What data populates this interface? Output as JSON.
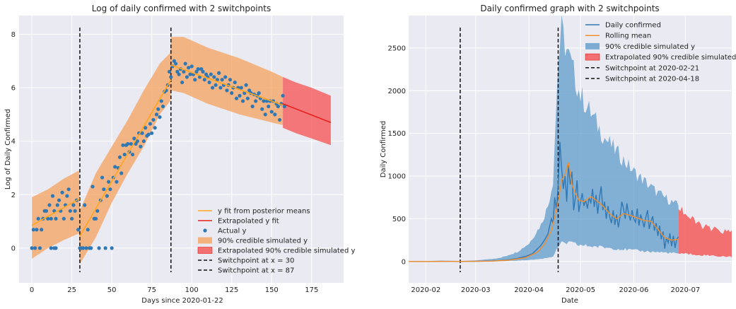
{
  "chart_data": [
    {
      "type": "line",
      "title": "Log of daily confirmed with 2 switchpoints",
      "xlabel": "Days since 2020-01-22",
      "ylabel": "Log of Daily Confirmed",
      "xlim": [
        -8,
        195
      ],
      "ylim": [
        -1.3,
        8.7
      ],
      "xticks": [
        0,
        25,
        50,
        75,
        100,
        125,
        150,
        175
      ],
      "yticks": [
        0,
        2,
        4,
        6,
        8
      ],
      "grid": true,
      "legend_position": "lower-right",
      "legend": [
        "y fit from posterior means",
        "Extrapolated y fit",
        "Actual y",
        "90% credible simulated y",
        "Extrapolated 90% credible simulated y",
        "Switchpoint at x = 30",
        "Switchpoint at x = 87"
      ],
      "switchpoints": [
        30,
        87
      ],
      "fit": [
        [
          0,
          0.85
        ],
        [
          30,
          1.85
        ],
        [
          30,
          0.45
        ],
        [
          87,
          6.3
        ],
        [
          87,
          6.85
        ],
        [
          157,
          5.35
        ]
      ],
      "extrapolated_fit": [
        [
          157,
          5.4
        ],
        [
          187,
          4.7
        ]
      ],
      "band": {
        "x": [
          0,
          10,
          20,
          29.5,
          30,
          40,
          50,
          60,
          70,
          80,
          86.5,
          87,
          95,
          110,
          130,
          150,
          157
        ],
        "lower": [
          -0.4,
          0.0,
          0.3,
          0.55,
          -0.6,
          0.4,
          1.7,
          2.8,
          3.8,
          5.0,
          5.5,
          5.9,
          5.8,
          5.4,
          5.0,
          4.7,
          4.6
        ],
        "upper": [
          1.9,
          2.2,
          2.6,
          2.9,
          1.4,
          2.8,
          3.8,
          4.8,
          5.9,
          6.9,
          7.3,
          7.9,
          7.9,
          7.5,
          7.1,
          6.6,
          6.4
        ]
      },
      "extrapolated_band": {
        "x": [
          157,
          165,
          175,
          187
        ],
        "lower": [
          4.5,
          4.3,
          4.1,
          3.85
        ],
        "upper": [
          6.4,
          6.2,
          6.0,
          5.7
        ]
      },
      "points": [
        [
          0,
          0
        ],
        [
          2,
          0
        ],
        [
          5,
          0
        ],
        [
          12,
          0
        ],
        [
          14,
          0
        ],
        [
          15,
          0
        ],
        [
          1,
          0.69
        ],
        [
          3,
          0.69
        ],
        [
          6,
          0.69
        ],
        [
          4,
          1.1
        ],
        [
          7,
          1.1
        ],
        [
          8,
          1.39
        ],
        [
          9,
          1.39
        ],
        [
          10,
          1.1
        ],
        [
          11,
          1.61
        ],
        [
          12,
          1.1
        ],
        [
          13,
          1.95
        ],
        [
          14,
          1.39
        ],
        [
          15,
          1.1
        ],
        [
          16,
          1.61
        ],
        [
          17,
          1.79
        ],
        [
          18,
          1.39
        ],
        [
          19,
          2.08
        ],
        [
          20,
          1.1
        ],
        [
          21,
          1.61
        ],
        [
          22,
          1.95
        ],
        [
          23,
          2.2
        ],
        [
          24,
          1.39
        ],
        [
          25,
          1.1
        ],
        [
          26,
          1.61
        ],
        [
          27,
          1.39
        ],
        [
          28,
          1.79
        ],
        [
          29,
          0.69
        ],
        [
          30,
          0
        ],
        [
          31,
          0
        ],
        [
          32,
          0
        ],
        [
          33,
          1.61
        ],
        [
          34,
          0
        ],
        [
          35,
          0.69
        ],
        [
          36,
          0
        ],
        [
          37,
          0
        ],
        [
          38,
          2.3
        ],
        [
          39,
          1.1
        ],
        [
          40,
          1.1
        ],
        [
          42,
          0
        ],
        [
          44,
          2.64
        ],
        [
          46,
          0
        ],
        [
          48,
          2.48
        ],
        [
          50,
          0
        ],
        [
          41,
          1.39
        ],
        [
          43,
          1.79
        ],
        [
          45,
          2.2
        ],
        [
          47,
          1.95
        ],
        [
          49,
          2.2
        ],
        [
          51,
          2.64
        ],
        [
          52,
          3.04
        ],
        [
          53,
          2.48
        ],
        [
          54,
          3.0
        ],
        [
          55,
          3.4
        ],
        [
          56,
          2.8
        ],
        [
          57,
          3.85
        ],
        [
          58,
          3.5
        ],
        [
          59,
          3.85
        ],
        [
          60,
          3.9
        ],
        [
          61,
          3.6
        ],
        [
          62,
          3.9
        ],
        [
          63,
          3.5
        ],
        [
          64,
          4.1
        ],
        [
          65,
          3.9
        ],
        [
          66,
          4.0
        ],
        [
          67,
          4.3
        ],
        [
          68,
          3.8
        ],
        [
          69,
          4.3
        ],
        [
          70,
          4.0
        ],
        [
          71,
          4.5
        ],
        [
          72,
          4.2
        ],
        [
          73,
          4.25
        ],
        [
          74,
          4.65
        ],
        [
          75,
          4.3
        ],
        [
          76,
          4.8
        ],
        [
          77,
          4.5
        ],
        [
          78,
          5.0
        ],
        [
          79,
          5.2
        ],
        [
          80,
          4.9
        ],
        [
          81,
          5.5
        ],
        [
          82,
          5.3
        ],
        [
          83,
          5.85
        ],
        [
          84,
          5.9
        ],
        [
          85,
          6.1
        ],
        [
          86,
          6.6
        ],
        [
          87,
          6.4
        ],
        [
          88,
          6.8
        ],
        [
          89,
          7.0
        ],
        [
          90,
          6.9
        ],
        [
          91,
          6.6
        ],
        [
          92,
          6.5
        ],
        [
          93,
          6.7
        ],
        [
          94,
          6.2
        ],
        [
          95,
          6.6
        ],
        [
          96,
          6.9
        ],
        [
          97,
          6.4
        ],
        [
          98,
          6.75
        ],
        [
          99,
          6.5
        ],
        [
          100,
          6.8
        ],
        [
          101,
          6.5
        ],
        [
          102,
          6.3
        ],
        [
          103,
          6.6
        ],
        [
          104,
          6.7
        ],
        [
          105,
          6.4
        ],
        [
          106,
          6.7
        ],
        [
          107,
          6.6
        ],
        [
          108,
          6.3
        ],
        [
          109,
          6.5
        ],
        [
          110,
          6.4
        ],
        [
          111,
          6.2
        ],
        [
          112,
          6.5
        ],
        [
          113,
          6.0
        ],
        [
          114,
          6.4
        ],
        [
          115,
          6.1
        ],
        [
          116,
          6.3
        ],
        [
          117,
          6.55
        ],
        [
          118,
          6.0
        ],
        [
          119,
          6.3
        ],
        [
          120,
          6.1
        ],
        [
          121,
          6.4
        ],
        [
          122,
          5.9
        ],
        [
          123,
          6.1
        ],
        [
          124,
          6.3
        ],
        [
          125,
          5.8
        ],
        [
          126,
          6.0
        ],
        [
          127,
          6.2
        ],
        [
          128,
          5.6
        ],
        [
          129,
          6.0
        ],
        [
          130,
          5.7
        ],
        [
          131,
          6.0
        ],
        [
          132,
          5.5
        ],
        [
          133,
          5.8
        ],
        [
          134,
          6.1
        ],
        [
          135,
          5.6
        ],
        [
          136,
          5.9
        ],
        [
          137,
          5.8
        ],
        [
          138,
          5.3
        ],
        [
          139,
          5.75
        ],
        [
          140,
          5.5
        ],
        [
          141,
          5.7
        ],
        [
          142,
          5.8
        ],
        [
          143,
          5.6
        ],
        [
          144,
          5.2
        ],
        [
          145,
          5.5
        ],
        [
          146,
          5.0
        ],
        [
          147,
          5.5
        ],
        [
          148,
          5.3
        ],
        [
          149,
          5.5
        ],
        [
          150,
          5.1
        ],
        [
          151,
          5.5
        ],
        [
          152,
          5.0
        ],
        [
          153,
          5.4
        ],
        [
          154,
          5.3
        ],
        [
          155,
          4.8
        ],
        [
          156,
          5.4
        ],
        [
          157,
          5.7
        ],
        [
          158,
          5.3
        ]
      ]
    },
    {
      "type": "line",
      "title": "Daily confirmed graph with 2 switchpoints",
      "xlabel": "Date",
      "ylabel": "Daily Confirmed",
      "xlim": [
        "2020-01-22",
        "2020-07-28"
      ],
      "ylim": [
        -250,
        2880
      ],
      "xticks": [
        "2020-02",
        "2020-03",
        "2020-04",
        "2020-05",
        "2020-06",
        "2020-07"
      ],
      "yticks": [
        0,
        500,
        1000,
        1500,
        2000,
        2500
      ],
      "grid": true,
      "legend_position": "top-right",
      "legend": [
        "Daily confirmed",
        "Rolling mean",
        "90% credible simulated y",
        "Extrapolated 90% credible simulated y",
        "Switchpoint at 2020-02-21",
        "Switchpoint at 2020-04-18"
      ],
      "switchpoints": [
        "2020-02-21",
        "2020-04-18"
      ],
      "band": {
        "x": [
          "2020-01-22",
          "2020-02-21",
          "2020-03-01",
          "2020-03-15",
          "2020-03-25",
          "2020-04-01",
          "2020-04-08",
          "2020-04-12",
          "2020-04-15",
          "2020-04-18",
          "2020-04-20",
          "2020-04-24",
          "2020-05-01",
          "2020-05-15",
          "2020-06-01",
          "2020-06-15",
          "2020-06-27"
        ],
        "lower": [
          0,
          0,
          0,
          3,
          10,
          18,
          30,
          45,
          60,
          170,
          210,
          220,
          190,
          165,
          130,
          110,
          95
        ],
        "upper": [
          2,
          5,
          12,
          40,
          110,
          210,
          430,
          650,
          950,
          2350,
          2700,
          2400,
          1950,
          1450,
          1050,
          800,
          650
        ]
      },
      "extrapolated_band": {
        "x": [
          "2020-06-27",
          "2020-07-05",
          "2020-07-15",
          "2020-07-28"
        ],
        "lower": [
          95,
          85,
          70,
          55
        ],
        "upper": [
          650,
          480,
          380,
          340
        ]
      },
      "daily": [
        [
          "2020-01-22",
          0
        ],
        [
          "2020-02-01",
          0
        ],
        [
          "2020-02-10",
          3
        ],
        [
          "2020-02-21",
          1
        ],
        [
          "2020-03-01",
          2
        ],
        [
          "2020-03-10",
          5
        ],
        [
          "2020-03-15",
          12
        ],
        [
          "2020-03-20",
          20
        ],
        [
          "2020-03-25",
          35
        ],
        [
          "2020-03-30",
          60
        ],
        [
          "2020-04-03",
          90
        ],
        [
          "2020-04-06",
          150
        ],
        [
          "2020-04-08",
          190
        ],
        [
          "2020-04-10",
          250
        ],
        [
          "2020-04-12",
          320
        ],
        [
          "2020-04-14",
          500
        ],
        [
          "2020-04-15",
          450
        ],
        [
          "2020-04-16",
          750
        ],
        [
          "2020-04-17",
          600
        ],
        [
          "2020-04-18",
          900
        ],
        [
          "2020-04-19",
          1400
        ],
        [
          "2020-04-20",
          1100
        ],
        [
          "2020-04-21",
          850
        ],
        [
          "2020-04-22",
          1000
        ],
        [
          "2020-04-23",
          700
        ],
        [
          "2020-04-24",
          1150
        ],
        [
          "2020-04-25",
          900
        ],
        [
          "2020-04-26",
          1050
        ],
        [
          "2020-04-27",
          600
        ],
        [
          "2020-04-28",
          750
        ],
        [
          "2020-04-29",
          950
        ],
        [
          "2020-04-30",
          580
        ],
        [
          "2020-05-01",
          700
        ],
        [
          "2020-05-02",
          800
        ],
        [
          "2020-05-03",
          650
        ],
        [
          "2020-05-04",
          720
        ],
        [
          "2020-05-05",
          620
        ],
        [
          "2020-05-06",
          750
        ],
        [
          "2020-05-07",
          680
        ],
        [
          "2020-05-08",
          850
        ],
        [
          "2020-05-09",
          640
        ],
        [
          "2020-05-10",
          780
        ],
        [
          "2020-05-11",
          560
        ],
        [
          "2020-05-12",
          740
        ],
        [
          "2020-05-13",
          880
        ],
        [
          "2020-05-14",
          600
        ],
        [
          "2020-05-15",
          700
        ],
        [
          "2020-05-16",
          500
        ],
        [
          "2020-05-17",
          650
        ],
        [
          "2020-05-18",
          520
        ],
        [
          "2020-05-19",
          450
        ],
        [
          "2020-05-20",
          600
        ],
        [
          "2020-05-21",
          430
        ],
        [
          "2020-05-22",
          550
        ],
        [
          "2020-05-23",
          400
        ],
        [
          "2020-05-24",
          520
        ],
        [
          "2020-05-25",
          700
        ],
        [
          "2020-05-26",
          620
        ],
        [
          "2020-05-27",
          500
        ],
        [
          "2020-05-28",
          680
        ],
        [
          "2020-05-29",
          560
        ],
        [
          "2020-05-30",
          480
        ],
        [
          "2020-05-31",
          600
        ],
        [
          "2020-06-01",
          500
        ],
        [
          "2020-06-02",
          460
        ],
        [
          "2020-06-03",
          620
        ],
        [
          "2020-06-04",
          420
        ],
        [
          "2020-06-05",
          550
        ],
        [
          "2020-06-06",
          480
        ],
        [
          "2020-06-07",
          400
        ],
        [
          "2020-06-08",
          520
        ],
        [
          "2020-06-09",
          600
        ],
        [
          "2020-06-10",
          380
        ],
        [
          "2020-06-11",
          470
        ],
        [
          "2020-06-12",
          530
        ],
        [
          "2020-06-13",
          360
        ],
        [
          "2020-06-14",
          450
        ],
        [
          "2020-06-15",
          300
        ],
        [
          "2020-06-16",
          420
        ],
        [
          "2020-06-17",
          260
        ],
        [
          "2020-06-18",
          350
        ],
        [
          "2020-06-19",
          150
        ],
        [
          "2020-06-20",
          280
        ],
        [
          "2020-06-21",
          220
        ],
        [
          "2020-06-22",
          330
        ],
        [
          "2020-06-23",
          180
        ],
        [
          "2020-06-24",
          300
        ],
        [
          "2020-06-25",
          160
        ],
        [
          "2020-06-26",
          260
        ],
        [
          "2020-06-27",
          290
        ]
      ],
      "rolling": [
        [
          "2020-01-22",
          0
        ],
        [
          "2020-02-21",
          1
        ],
        [
          "2020-03-10",
          4
        ],
        [
          "2020-03-20",
          15
        ],
        [
          "2020-03-30",
          45
        ],
        [
          "2020-04-06",
          110
        ],
        [
          "2020-04-10",
          200
        ],
        [
          "2020-04-14",
          360
        ],
        [
          "2020-04-16",
          520
        ],
        [
          "2020-04-18",
          700
        ],
        [
          "2020-04-20",
          950
        ],
        [
          "2020-04-22",
          1020
        ],
        [
          "2020-04-24",
          1160
        ],
        [
          "2020-04-26",
          900
        ],
        [
          "2020-04-28",
          800
        ],
        [
          "2020-04-30",
          720
        ],
        [
          "2020-05-03",
          700
        ],
        [
          "2020-05-07",
          760
        ],
        [
          "2020-05-10",
          720
        ],
        [
          "2020-05-14",
          650
        ],
        [
          "2020-05-18",
          560
        ],
        [
          "2020-05-22",
          500
        ],
        [
          "2020-05-26",
          560
        ],
        [
          "2020-05-30",
          540
        ],
        [
          "2020-06-03",
          510
        ],
        [
          "2020-06-07",
          480
        ],
        [
          "2020-06-11",
          470
        ],
        [
          "2020-06-15",
          380
        ],
        [
          "2020-06-19",
          280
        ],
        [
          "2020-06-23",
          250
        ],
        [
          "2020-06-27",
          260
        ]
      ]
    }
  ]
}
